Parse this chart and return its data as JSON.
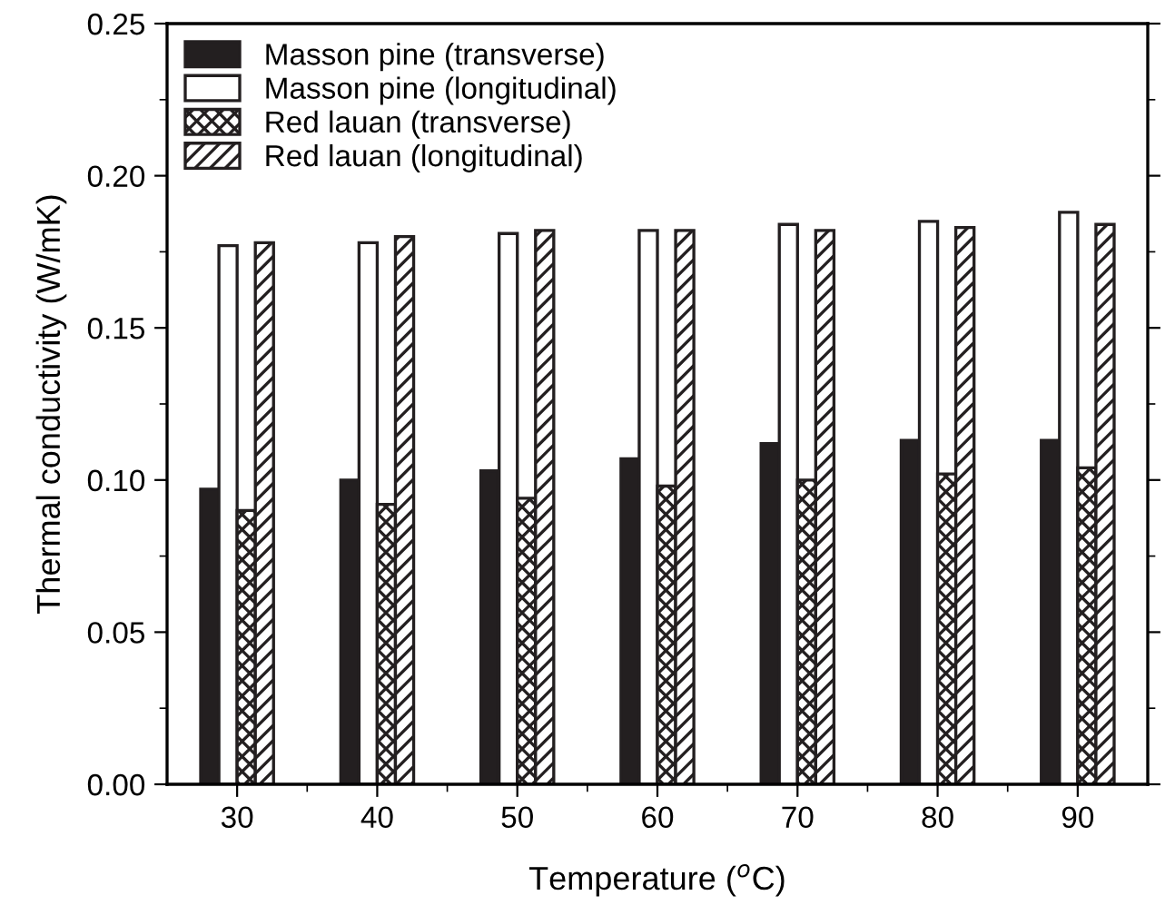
{
  "chart_data": {
    "type": "bar",
    "xlabel": "Temperature ($^{o}$C)",
    "ylabel": "Thermal conductivity (W/mK)",
    "categories": [
      "30",
      "40",
      "50",
      "60",
      "70",
      "80",
      "90"
    ],
    "series": [
      {
        "name": "Masson pine (transverse)",
        "color": "#231f20",
        "values": [
          0.097,
          0.1,
          0.103,
          0.107,
          0.112,
          0.113,
          0.113
        ]
      },
      {
        "name": "Masson pine (longitudinal)",
        "color": "#ffffff",
        "values": [
          0.177,
          0.178,
          0.181,
          0.182,
          0.184,
          0.185,
          0.188
        ]
      },
      {
        "name": "Red lauan (transverse)",
        "color": "#231f20",
        "values": [
          0.09,
          0.092,
          0.094,
          0.098,
          0.1,
          0.102,
          0.104
        ]
      },
      {
        "name": "Red lauan (longitudinal)",
        "color": "#231f20",
        "values": [
          0.178,
          0.18,
          0.182,
          0.182,
          0.182,
          0.183,
          0.184
        ]
      }
    ],
    "ylim": [
      0,
      0.25
    ],
    "yticks": [
      {
        "value": 0,
        "label": "0.00"
      },
      {
        "value": 0.05,
        "label": "0.05"
      },
      {
        "value": 0.1,
        "label": "0.10"
      },
      {
        "value": 0.15,
        "label": "0.15"
      },
      {
        "value": 0.2,
        "label": "0.20"
      },
      {
        "value": 0.25,
        "label": "0.25"
      }
    ],
    "grid": false,
    "legend": "top left"
  }
}
